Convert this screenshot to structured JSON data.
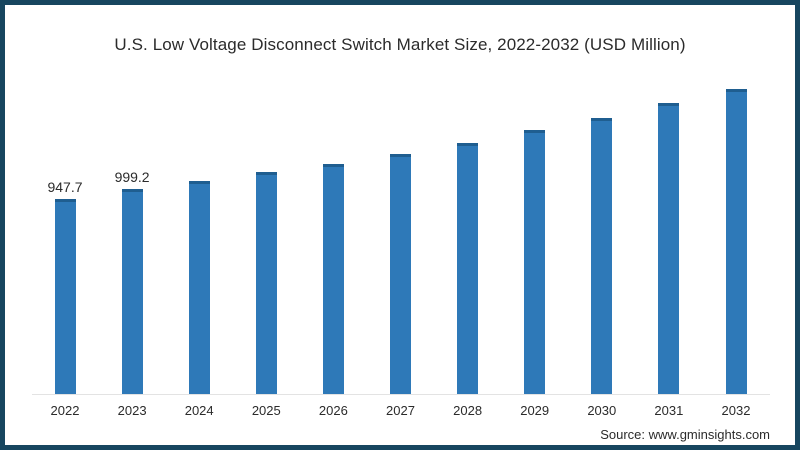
{
  "title": "U.S. Low Voltage Disconnect Switch Market Size, 2022-2032 (USD Million)",
  "source": "Source: www.gminsights.com",
  "colors": {
    "bar": "#2e79b8",
    "bar_top_edge": "#1f5e90",
    "frame_border": "#17465f",
    "axis_line": "#e3e3e3",
    "text": "#2b2b2b",
    "background": "#ffffff"
  },
  "chart_data": {
    "type": "bar",
    "title": "U.S. Low Voltage Disconnect Switch Market Size, 2022-2032 (USD Million)",
    "categories": [
      "2022",
      "2023",
      "2024",
      "2025",
      "2026",
      "2027",
      "2028",
      "2029",
      "2030",
      "2031",
      "2032"
    ],
    "values": [
      947.7,
      999.2,
      1037,
      1081,
      1120,
      1169,
      1222,
      1286,
      1344,
      1417,
      1484
    ],
    "data_labels": [
      "947.7",
      "999.2",
      "",
      "",
      "",
      "",
      "",
      "",
      "",
      "",
      ""
    ],
    "xlabel": "",
    "ylabel": "",
    "ylim": [
      0,
      1625
    ],
    "grid": false,
    "legend": false,
    "y_axis_shown": false,
    "baseline_axis_shown": true
  }
}
